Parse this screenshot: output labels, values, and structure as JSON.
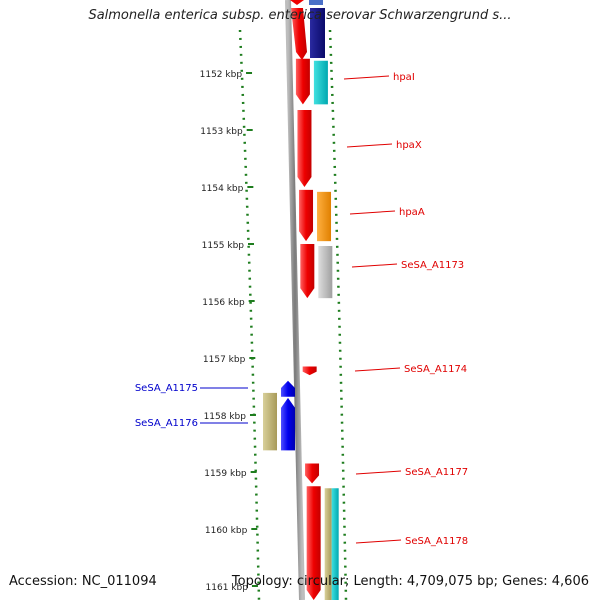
{
  "header": {
    "title": "Salmonella enterica subsp. enterica serovar Schwarzengrund s..."
  },
  "footer": {
    "accession": "Accession: NC_011094",
    "summary": "Topology: circular; Length: 4,709,075 bp; Genes: 4,606"
  },
  "colors": {
    "backbone": "#8c8c8c",
    "tick": "#1e7d1e",
    "forward_label": "#e00000",
    "reverse_label": "#0000cc"
  },
  "scale": {
    "ticks": [
      {
        "kbp": 1152,
        "label": "1152 kbp"
      },
      {
        "kbp": 1153,
        "label": "1153 kbp"
      },
      {
        "kbp": 1154,
        "label": "1154 kbp"
      },
      {
        "kbp": 1155,
        "label": "1155 kbp"
      },
      {
        "kbp": 1156,
        "label": "1156 kbp"
      },
      {
        "kbp": 1157,
        "label": "1157 kbp"
      },
      {
        "kbp": 1158,
        "label": "1158 kbp"
      },
      {
        "kbp": 1159,
        "label": "1159 kbp"
      },
      {
        "kbp": 1160,
        "label": "1160 kbp"
      },
      {
        "kbp": 1161,
        "label": "1161 kbp"
      }
    ]
  },
  "genes": [
    {
      "name": "hpaI",
      "strand": "forward",
      "start_kbp": 1151.75,
      "end_kbp": 1152.55
    },
    {
      "name": "hpaX",
      "strand": "forward",
      "start_kbp": 1152.65,
      "end_kbp": 1154.0
    },
    {
      "name": "hpaA",
      "strand": "forward",
      "start_kbp": 1154.05,
      "end_kbp": 1154.95
    },
    {
      "name": "SeSA_A1173",
      "strand": "forward",
      "start_kbp": 1155.0,
      "end_kbp": 1155.95
    },
    {
      "name": "SeSA_A1174",
      "strand": "forward",
      "start_kbp": 1157.15,
      "end_kbp": 1157.3
    },
    {
      "name": "SeSA_A1175",
      "strand": "reverse",
      "start_kbp": 1157.4,
      "end_kbp": 1157.68
    },
    {
      "name": "SeSA_A1176",
      "strand": "reverse",
      "start_kbp": 1157.7,
      "end_kbp": 1158.62
    },
    {
      "name": "SeSA_A1177",
      "strand": "forward",
      "start_kbp": 1158.85,
      "end_kbp": 1159.2
    },
    {
      "name": "SeSA_A1178",
      "strand": "forward",
      "start_kbp": 1159.25,
      "end_kbp": 1161.5
    }
  ]
}
